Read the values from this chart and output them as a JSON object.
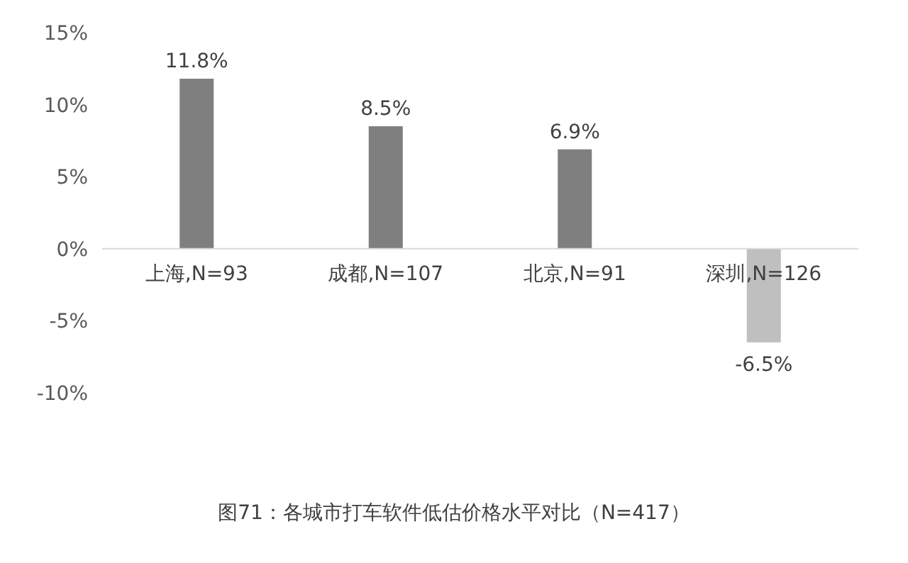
{
  "chart_data": {
    "type": "bar",
    "title": "图71：各城市打车软件低估价格水平对比（N=417）",
    "categories": [
      "上海,N=93",
      "成都,N=107",
      "北京,N=91",
      "深圳,N=126"
    ],
    "values": [
      11.8,
      8.5,
      6.9,
      -6.5
    ],
    "colors": [
      "#7f7f7f",
      "#7f7f7f",
      "#7f7f7f",
      "#bfbfbf"
    ],
    "value_labels": [
      "11.8%",
      "8.5%",
      "6.9%",
      "-6.5%"
    ],
    "ylim": [
      -10,
      15
    ],
    "yticks": [
      {
        "value": -10,
        "label": "-10%"
      },
      {
        "value": -5,
        "label": "-5%"
      },
      {
        "value": 0,
        "label": "0%"
      },
      {
        "value": 5,
        "label": "5%"
      },
      {
        "value": 10,
        "label": "10%"
      },
      {
        "value": 15,
        "label": "15%"
      }
    ],
    "grid": false
  }
}
